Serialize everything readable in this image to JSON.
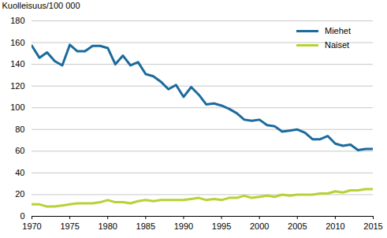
{
  "chart_data": {
    "type": "line",
    "y_label": "Kuolleisuus/100 000",
    "x": [
      1970,
      1971,
      1972,
      1973,
      1974,
      1975,
      1976,
      1977,
      1978,
      1979,
      1980,
      1981,
      1982,
      1983,
      1984,
      1985,
      1986,
      1987,
      1988,
      1989,
      1990,
      1991,
      1992,
      1993,
      1994,
      1995,
      1996,
      1997,
      1998,
      1999,
      2000,
      2001,
      2002,
      2003,
      2004,
      2005,
      2006,
      2007,
      2008,
      2009,
      2010,
      2011,
      2012,
      2013,
      2014,
      2015
    ],
    "series": [
      {
        "name": "Miehet",
        "color": "#1b6b9e",
        "values": [
          157,
          146,
          151,
          143,
          139,
          158,
          152,
          152,
          157,
          157,
          155,
          140,
          148,
          139,
          142,
          131,
          129,
          124,
          117,
          121,
          110,
          119,
          112,
          103,
          104,
          102,
          99,
          95,
          89,
          88,
          89,
          84,
          83,
          78,
          79,
          80,
          77,
          71,
          71,
          74,
          67,
          65,
          66,
          61,
          62,
          62
        ]
      },
      {
        "name": "Naiset",
        "color": "#b5d334",
        "values": [
          11,
          11,
          9,
          9,
          10,
          11,
          12,
          12,
          12,
          13,
          15,
          13,
          13,
          12,
          14,
          15,
          14,
          15,
          15,
          15,
          15,
          16,
          17,
          15,
          16,
          15,
          17,
          17,
          19,
          17,
          18,
          19,
          18,
          20,
          19,
          20,
          20,
          20,
          21,
          21,
          23,
          22,
          24,
          24,
          25,
          25
        ]
      }
    ],
    "xlim": [
      1970,
      2015
    ],
    "xticks": [
      1970,
      1975,
      1980,
      1985,
      1990,
      1995,
      2000,
      2005,
      2010,
      2015
    ],
    "ylim": [
      0,
      180
    ],
    "yticks": [
      0,
      20,
      40,
      60,
      80,
      100,
      120,
      140,
      160,
      180
    ],
    "grid": true,
    "legend": "top-right"
  }
}
